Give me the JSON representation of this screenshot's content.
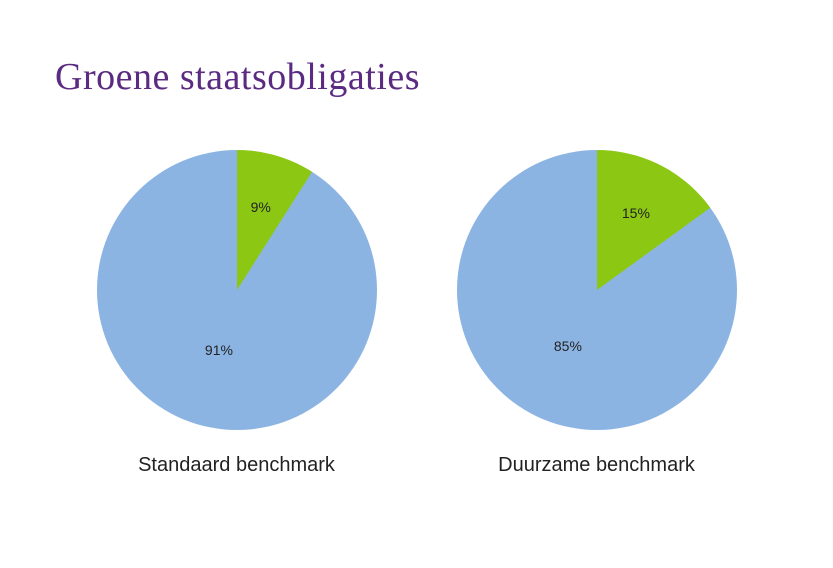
{
  "title": "Groene staatsobligaties",
  "title_color": "#5b2b82",
  "title_fontsize": 38,
  "background_color": "#ffffff",
  "caption_fontsize": 20,
  "caption_color": "#222222",
  "slice_label_fontsize": 14,
  "slice_label_color": "#222222",
  "charts": [
    {
      "type": "pie",
      "caption": "Standaard benchmark",
      "diameter": 280,
      "slices": [
        {
          "label": "9%",
          "value": 9,
          "color": "#8bc713"
        },
        {
          "label": "91%",
          "value": 91,
          "color": "#8cb4e3"
        }
      ]
    },
    {
      "type": "pie",
      "caption": "Duurzame benchmark",
      "diameter": 280,
      "slices": [
        {
          "label": "15%",
          "value": 15,
          "color": "#8bc713"
        },
        {
          "label": "85%",
          "value": 85,
          "color": "#8cb4e3"
        }
      ]
    }
  ]
}
